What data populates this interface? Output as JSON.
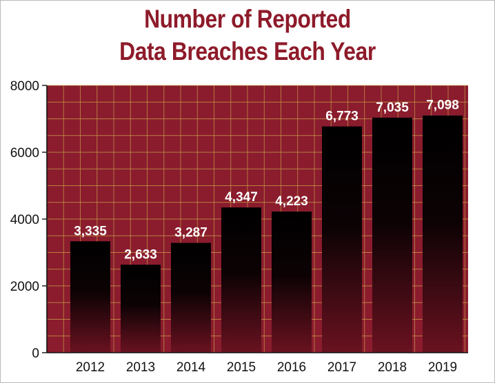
{
  "chart_data": {
    "type": "bar",
    "title": "Number of Reported Data Breaches Each Year",
    "title_lines": [
      "Number of Reported",
      "Data Breaches Each Year"
    ],
    "categories": [
      "2012",
      "2013",
      "2014",
      "2015",
      "2016",
      "2017",
      "2018",
      "2019"
    ],
    "values": [
      3335,
      2633,
      3287,
      4347,
      4223,
      6773,
      7035,
      7098
    ],
    "data_labels": [
      "3,335",
      "2,633",
      "3,287",
      "4,347",
      "4,223",
      "6,773",
      "7,035",
      "7,098"
    ],
    "xlabel": "",
    "ylabel": "",
    "ylim": [
      0,
      8000
    ],
    "yticks": [
      0,
      2000,
      4000,
      6000,
      8000
    ],
    "grid": true,
    "legend": "none",
    "colors": {
      "title": "#8e1b2a",
      "plot_background": "#8a1c2d",
      "grid": "#c9a14a",
      "bar_top": "#000000",
      "bar_bottom": "#5a0f1a",
      "data_label": "#ffffff",
      "axis_text": "#111111"
    }
  }
}
